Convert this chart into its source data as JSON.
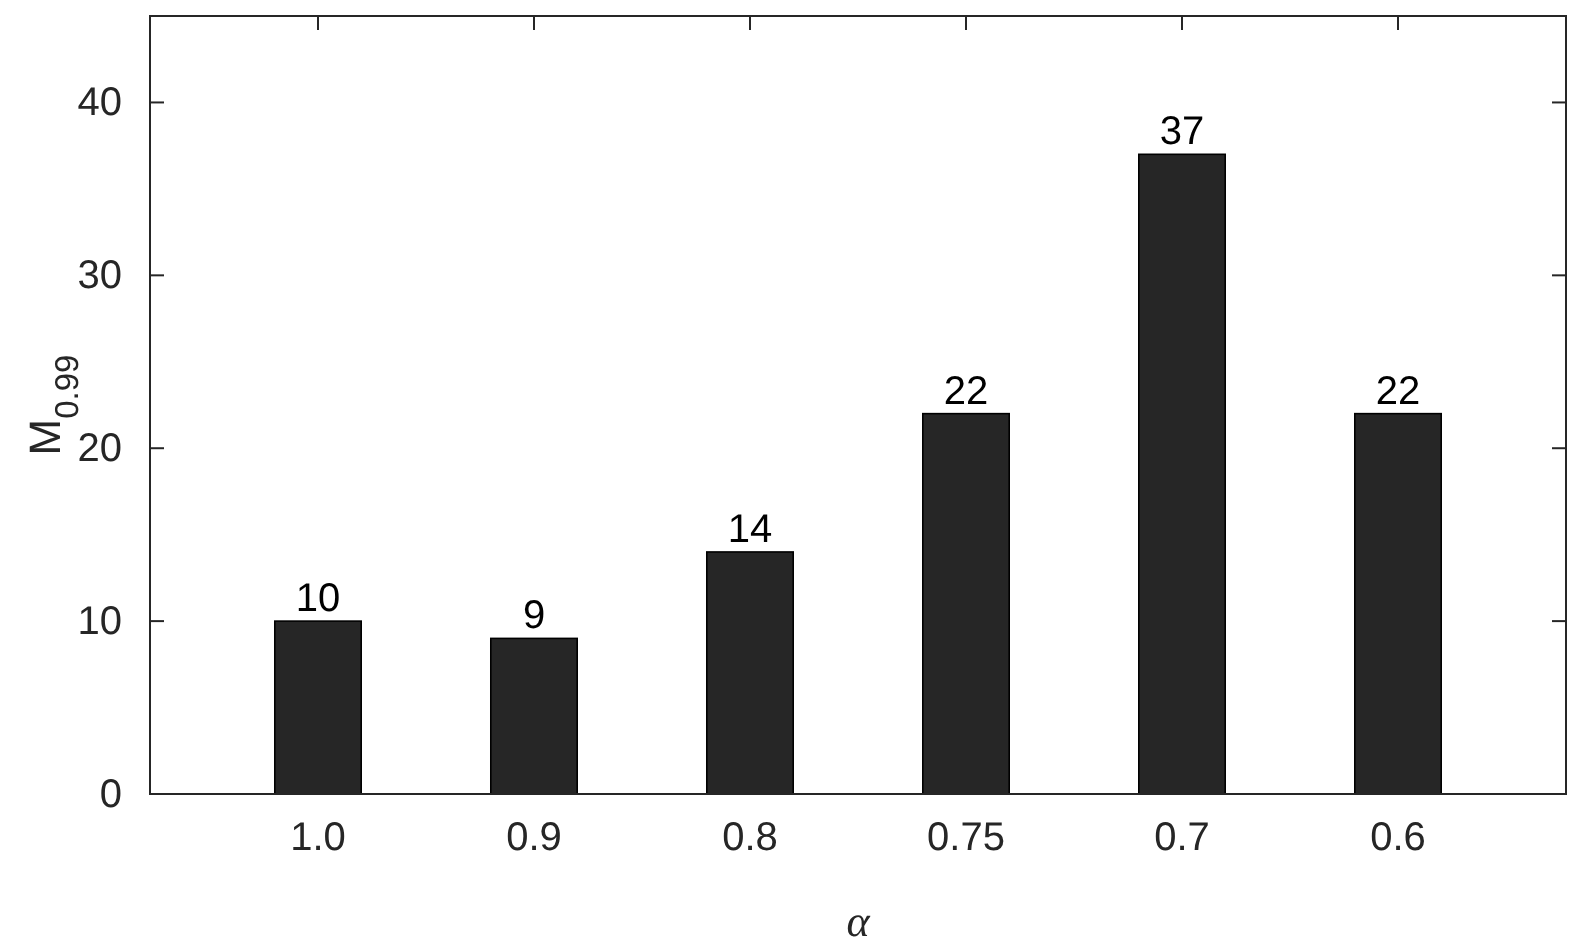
{
  "chart_data": {
    "type": "bar",
    "xlabel": "α",
    "ylabel": "M$_{0.99}$",
    "categories": [
      "1.0",
      "0.9",
      "0.8",
      "0.75",
      "0.7",
      "0.6"
    ],
    "values": [
      10,
      9,
      14,
      22,
      37,
      22
    ],
    "color": "#262626",
    "ylim": [
      0,
      45
    ],
    "yticks": [
      0,
      10,
      20,
      30,
      40
    ],
    "data_labels": true
  }
}
